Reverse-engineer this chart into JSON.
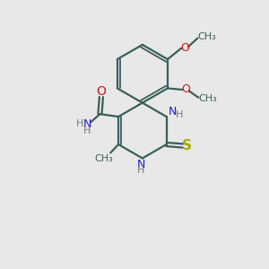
{
  "background_color": "#e8e8e8",
  "bond_color": "#3a5f5a",
  "n_color": "#1a1acc",
  "o_color": "#cc1a1a",
  "s_color": "#aaaa00",
  "h_color": "#777777",
  "figsize": [
    3.0,
    3.0
  ],
  "dpi": 100,
  "xlim": [
    0,
    10
  ],
  "ylim": [
    0,
    10
  ]
}
